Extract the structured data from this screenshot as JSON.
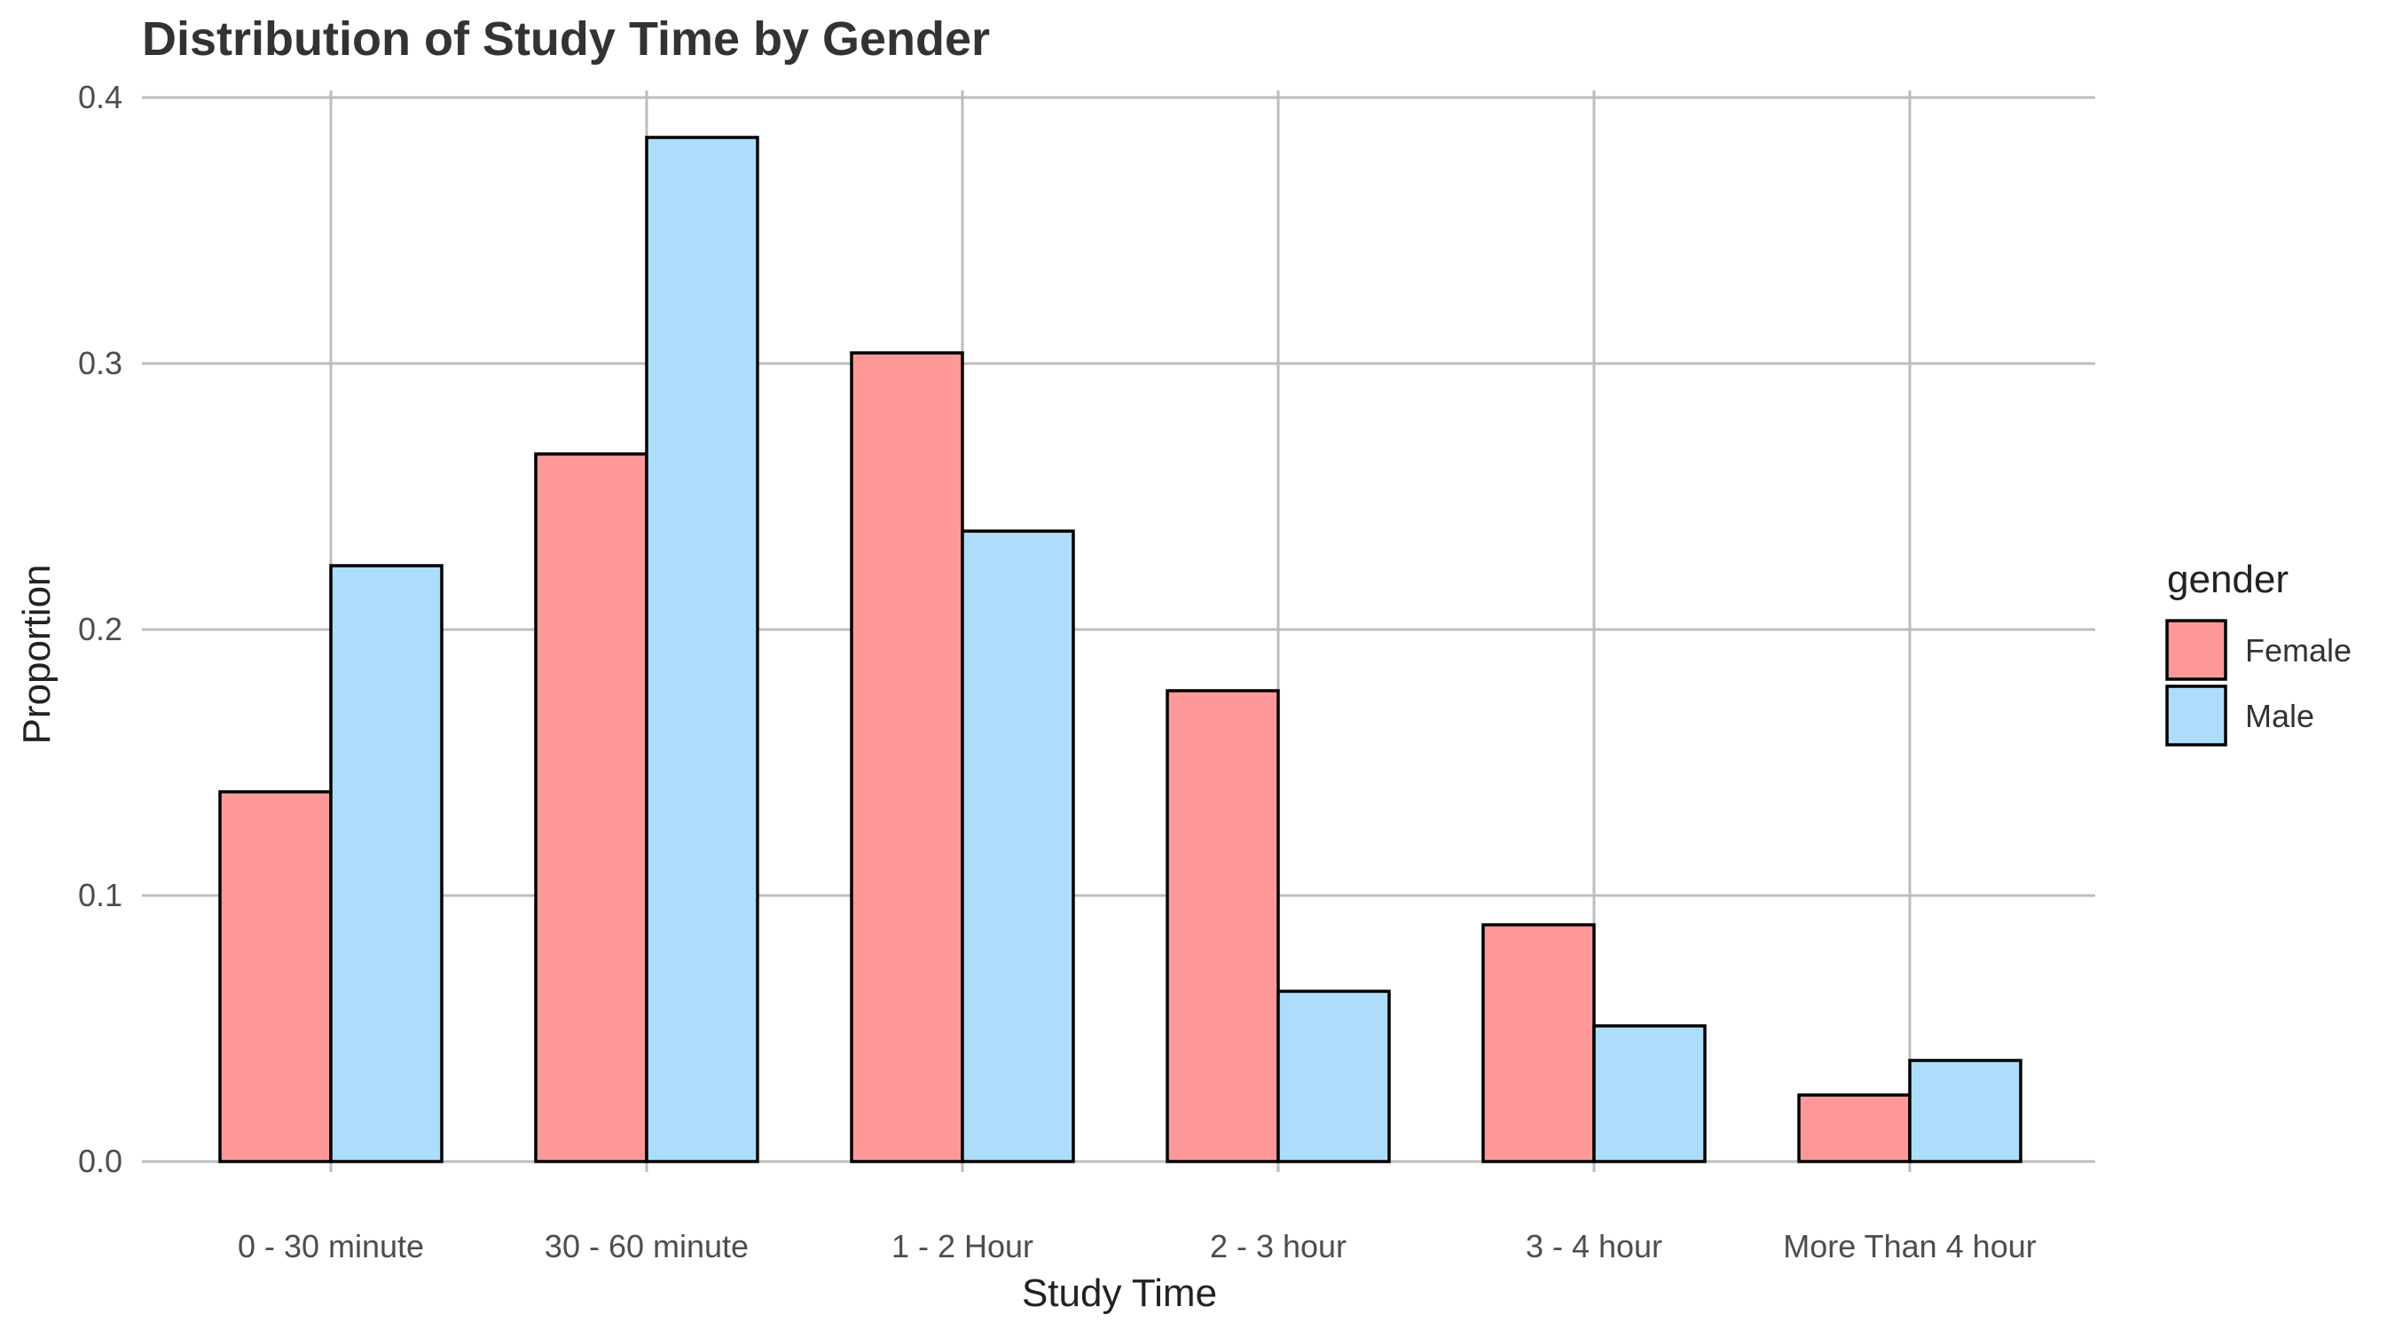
{
  "chart_data": {
    "type": "bar",
    "title": "Distribution of Study Time by Gender",
    "xlabel": "Study Time",
    "ylabel": "Proportion",
    "ylim": [
      0,
      0.4
    ],
    "yticks": [
      "0.0",
      "0.1",
      "0.2",
      "0.3",
      "0.4"
    ],
    "grid": true,
    "legend_position": "right",
    "legend_title": "gender",
    "categories": [
      "0 - 30 minute",
      "30 - 60 minute",
      "1 - 2 Hour",
      "2 - 3 hour",
      "3 - 4 hour",
      "More Than 4 hour"
    ],
    "series": [
      {
        "name": "Female",
        "color": "#FF9999",
        "values": [
          0.139,
          0.266,
          0.304,
          0.177,
          0.089,
          0.025
        ]
      },
      {
        "name": "Male",
        "color": "#ADDDFB",
        "values": [
          0.224,
          0.385,
          0.237,
          0.064,
          0.051,
          0.038
        ]
      }
    ]
  }
}
